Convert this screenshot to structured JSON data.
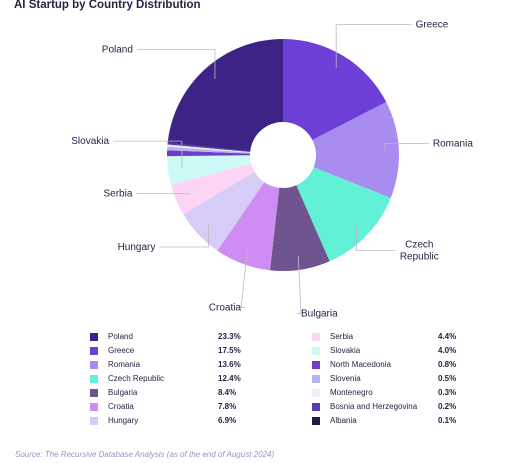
{
  "title": "AI Startup by Country Distribution",
  "source": "Source: The Recursive Database Analysis (as of the end of August 2024)",
  "chart_data": {
    "type": "pie",
    "title": "AI Startup by Country Distribution",
    "unit": "%",
    "slices": [
      {
        "label": "Greece",
        "value": 17.5,
        "pct": "17.5%",
        "color": "#6d3fd6"
      },
      {
        "label": "Romania",
        "value": 13.6,
        "pct": "13.6%",
        "color": "#a98cf0"
      },
      {
        "label": "Czech Republic",
        "value": 12.4,
        "pct": "12.4%",
        "color": "#62f0d6"
      },
      {
        "label": "Bulgaria",
        "value": 8.4,
        "pct": "8.4%",
        "color": "#70548f"
      },
      {
        "label": "Croatia",
        "value": 7.8,
        "pct": "7.8%",
        "color": "#cf8cf2"
      },
      {
        "label": "Hungary",
        "value": 6.9,
        "pct": "6.9%",
        "color": "#d6ccf7"
      },
      {
        "label": "Serbia",
        "value": 4.4,
        "pct": "4.4%",
        "color": "#fbd4f6"
      },
      {
        "label": "Slovakia",
        "value": 4.0,
        "pct": "4.0%",
        "color": "#cdfaf4"
      },
      {
        "label": "North Macedonia",
        "value": 0.8,
        "pct": "0.8%",
        "color": "#6c3fc4"
      },
      {
        "label": "Slovenia",
        "value": 0.5,
        "pct": "0.5%",
        "color": "#b3b7ee"
      },
      {
        "label": "Montenegro",
        "value": 0.3,
        "pct": "0.3%",
        "color": "#eeeef8"
      },
      {
        "label": "Bosnia and Herzegovina",
        "value": 0.2,
        "pct": "0.2%",
        "color": "#5a3cb5"
      },
      {
        "label": "Albania",
        "value": 0.1,
        "pct": "0.1%",
        "color": "#211848"
      },
      {
        "label": "Poland",
        "value": 23.3,
        "pct": "23.3%",
        "color": "#3d2385"
      }
    ],
    "legend_columns": [
      [
        "Poland",
        "Greece",
        "Romania",
        "Czech Republic",
        "Bulgaria",
        "Croatia",
        "Hungary"
      ],
      [
        "Serbia",
        "Slovakia",
        "North Macedonia",
        "Slovenia",
        "Montenegro",
        "Bosnia and Herzegovina",
        "Albania"
      ]
    ],
    "outside_labels": [
      "Poland",
      "Greece",
      "Romania",
      "Czech Republic",
      "Bulgaria",
      "Croatia",
      "Hungary",
      "Serbia",
      "Slovakia"
    ],
    "legend_position": "bottom"
  }
}
